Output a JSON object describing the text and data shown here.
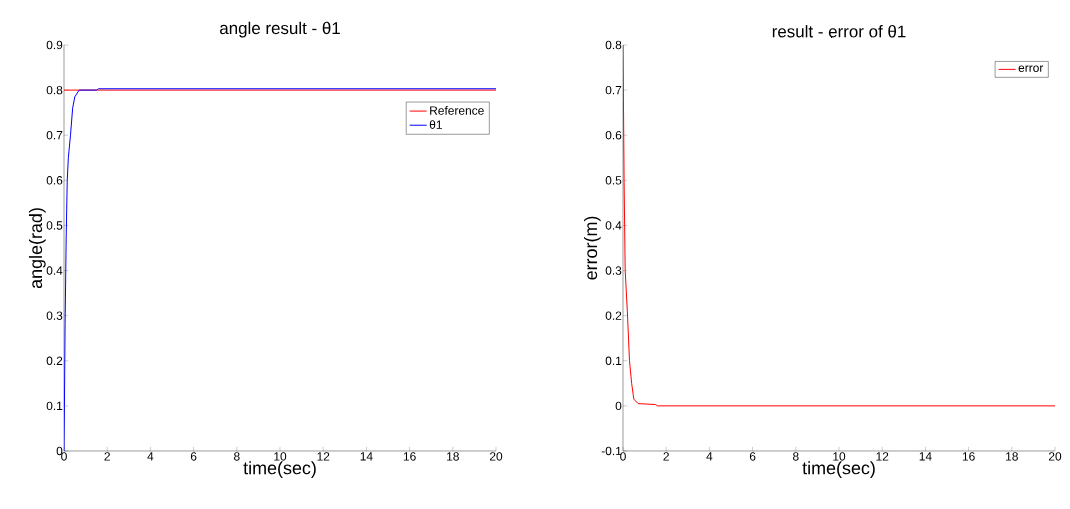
{
  "chart_data": [
    {
      "type": "line",
      "title": "angle result - θ1",
      "xlabel": "time(sec)",
      "ylabel": "angle(rad)",
      "xlim": [
        0,
        20
      ],
      "ylim": [
        0,
        0.9
      ],
      "xticks": [
        0,
        2,
        4,
        6,
        8,
        10,
        12,
        14,
        16,
        18,
        20
      ],
      "yticks": [
        0,
        0.1,
        0.2,
        0.3,
        0.4,
        0.5,
        0.6,
        0.7,
        0.8,
        0.9
      ],
      "legend": "top right",
      "grid": false,
      "series": [
        {
          "name": "Reference",
          "color": "#ff0000",
          "x": [
            0,
            20
          ],
          "values": [
            0.8,
            0.8
          ]
        },
        {
          "name": "θ1",
          "color": "#0000ff",
          "x": [
            0,
            0.02,
            0.05,
            0.1,
            0.15,
            0.2,
            0.3,
            0.4,
            0.5,
            0.7,
            1.5,
            1.6,
            20
          ],
          "values": [
            0,
            0.1,
            0.28,
            0.47,
            0.6,
            0.65,
            0.7,
            0.76,
            0.785,
            0.8,
            0.8,
            0.803,
            0.803
          ]
        }
      ]
    },
    {
      "type": "line",
      "title": "result - error of θ1",
      "xlabel": "time(sec)",
      "ylabel": "error(m)",
      "xlim": [
        0,
        20
      ],
      "ylim": [
        -0.1,
        0.8
      ],
      "xticks": [
        0,
        2,
        4,
        6,
        8,
        10,
        12,
        14,
        16,
        18,
        20
      ],
      "yticks": [
        -0.1,
        0,
        0.1,
        0.2,
        0.3,
        0.4,
        0.5,
        0.6,
        0.7,
        0.8
      ],
      "legend": "top right",
      "grid": false,
      "series": [
        {
          "name": "error",
          "color": "#ff0000",
          "x": [
            0,
            0.02,
            0.05,
            0.1,
            0.2,
            0.3,
            0.4,
            0.5,
            0.7,
            1.5,
            1.6,
            20
          ],
          "values": [
            0.8,
            0.68,
            0.5,
            0.3,
            0.21,
            0.1,
            0.05,
            0.015,
            0.005,
            0.003,
            0,
            0
          ]
        }
      ]
    }
  ]
}
